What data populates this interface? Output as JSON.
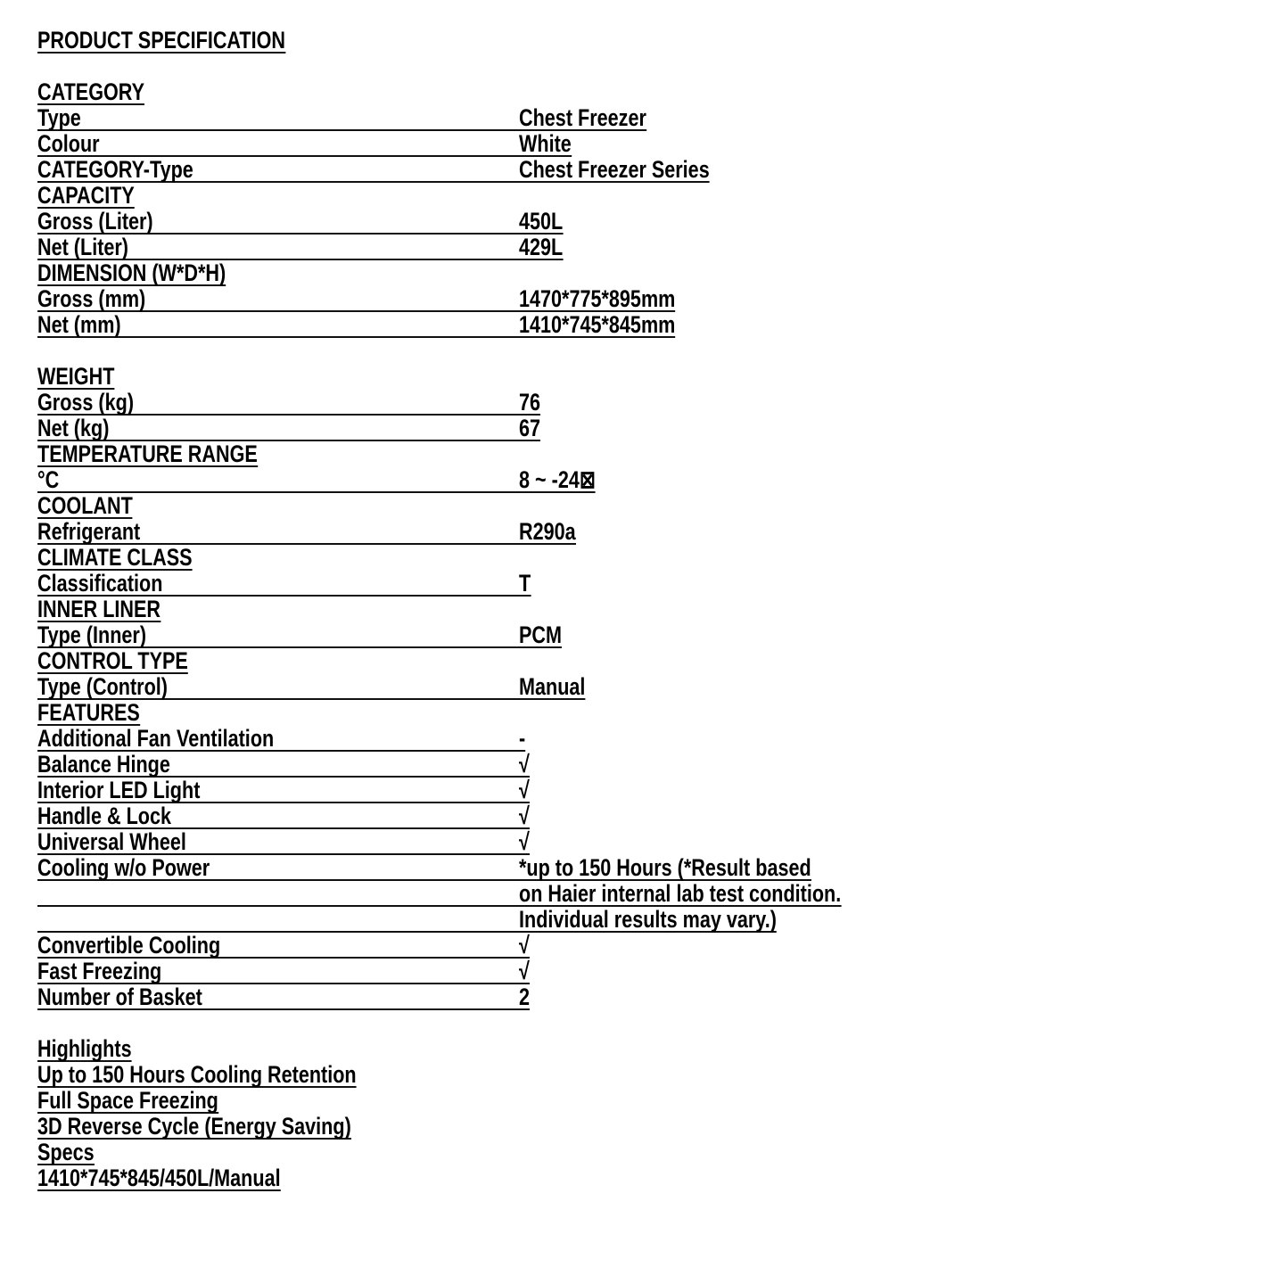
{
  "title": "PRODUCT SPECIFICATION",
  "sections": [
    {
      "heading": "CATEGORY",
      "rows": [
        {
          "label": "Type",
          "value": "Chest Freezer"
        },
        {
          "label": "Colour",
          "value": "White"
        },
        {
          "label": "CATEGORY-Type",
          "value": "Chest Freezer Series"
        }
      ]
    },
    {
      "heading": "CAPACITY",
      "rows": [
        {
          "label": "Gross (Liter)",
          "value": "450L"
        },
        {
          "label": "Net (Liter)",
          "value": "429L"
        }
      ]
    },
    {
      "heading": "DIMENSION (W*D*H)",
      "rows": [
        {
          "label": "Gross (mm)",
          "value": "1470*775*895mm"
        },
        {
          "label": "Net (mm)",
          "value": "1410*745*845mm"
        }
      ],
      "blank_after": true
    },
    {
      "heading": "WEIGHT",
      "rows": [
        {
          "label": "Gross (kg)",
          "value": "76"
        },
        {
          "label": "Net (kg)",
          "value": "67"
        }
      ]
    },
    {
      "heading": "TEMPERATURE RANGE",
      "rows": [
        {
          "label": "°C",
          "value": "8 ~ -24⊠"
        }
      ]
    },
    {
      "heading": "COOLANT",
      "rows": [
        {
          "label": "Refrigerant",
          "value": "R290a"
        }
      ]
    },
    {
      "heading": "CLIMATE CLASS",
      "rows": [
        {
          "label": "Classification",
          "value": "T"
        }
      ]
    },
    {
      "heading": "INNER LINER",
      "rows": [
        {
          "label": "Type (Inner)",
          "value": "PCM"
        }
      ]
    },
    {
      "heading": "CONTROL TYPE",
      "rows": [
        {
          "label": "Type (Control)",
          "value": "Manual"
        }
      ]
    },
    {
      "heading": "FEATURES",
      "rows": [
        {
          "label": "Additional Fan Ventilation",
          "value": "-"
        },
        {
          "label": "Balance Hinge",
          "value": "√"
        },
        {
          "label": "Interior LED Light",
          "value": "√"
        },
        {
          "label": "Handle & Lock",
          "value": "√"
        },
        {
          "label": "Universal Wheel",
          "value": "√"
        },
        {
          "label": "Cooling w/o Power",
          "value": "*up to 150 Hours (*Result based"
        },
        {
          "label": "",
          "value": "on Haier internal lab test condition."
        },
        {
          "label": "",
          "value": "Individual results may vary.)"
        },
        {
          "label": "Convertible Cooling",
          "value": "√"
        },
        {
          "label": "Fast Freezing",
          "value": "√"
        },
        {
          "label": "Number of Basket",
          "value": "2"
        }
      ],
      "blank_after": true
    }
  ],
  "highlights": {
    "heading": "Highlights",
    "items": [
      "Up to 150 Hours Cooling Retention",
      "Full Space Freezing",
      "3D Reverse Cycle (Energy Saving)"
    ]
  },
  "specs": {
    "heading": "Specs",
    "value": "1410*745*845/450L/Manual"
  }
}
